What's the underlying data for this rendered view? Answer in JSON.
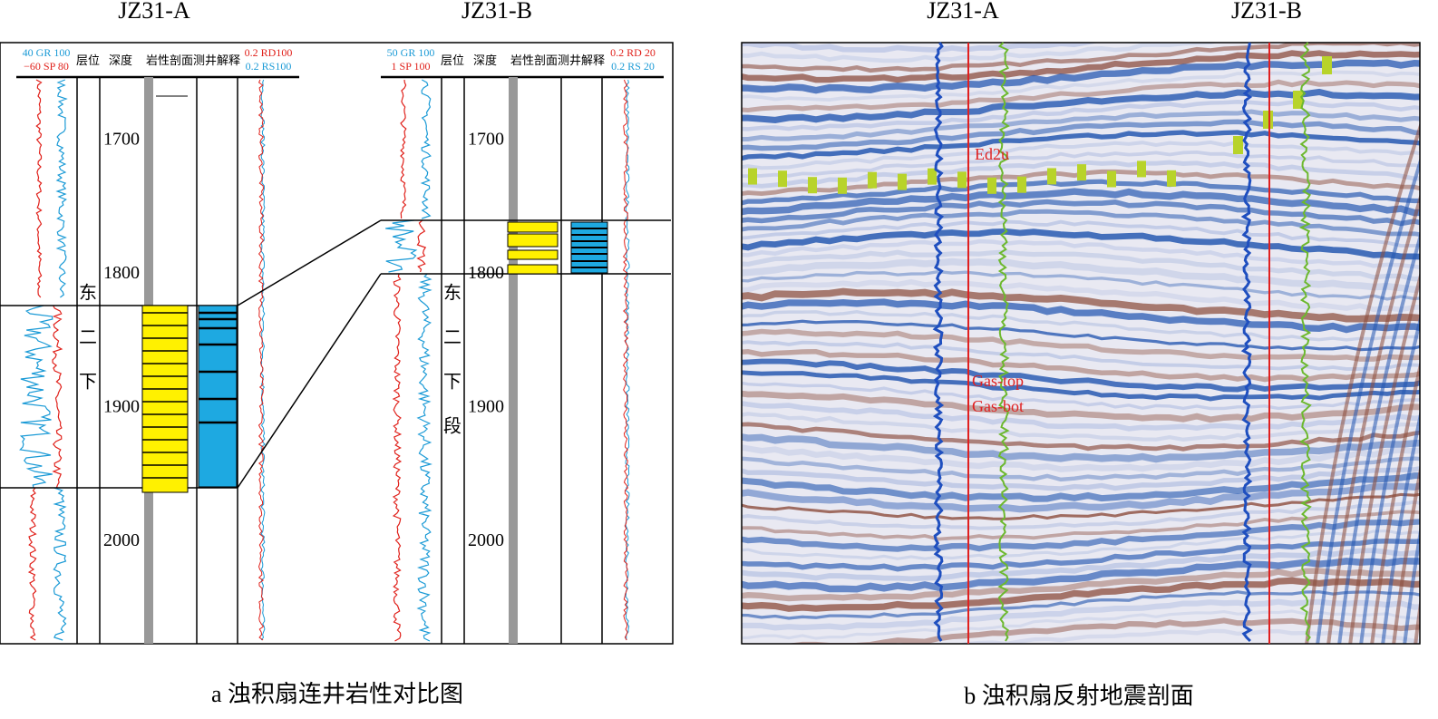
{
  "panel_a": {
    "wells": [
      {
        "name": "JZ31-A",
        "gr": "40 GR 100",
        "sp": "−60 SP 80",
        "columns": [
          "层位",
          "深度",
          "岩性剖面",
          "测井解释"
        ],
        "rd": "0.2 RD100",
        "rs": "0.2 RS100",
        "depths": [
          1700,
          1800,
          1900,
          2000
        ],
        "formation": [
          "东",
          "二",
          "下"
        ]
      },
      {
        "name": "JZ31-B",
        "gr": "50 GR 100",
        "sp": "1 SP 100",
        "columns": [
          "层位",
          "深度",
          "岩性剖面",
          "测井解释"
        ],
        "rd": "0.2 RD 20",
        "rs": "0.2 RS 20",
        "depths": [
          1700,
          1800,
          1900,
          2000
        ],
        "formation": [
          "东",
          "二",
          "下",
          "段"
        ]
      }
    ],
    "caption": "a 浊积扇连井岩性对比图"
  },
  "panel_b": {
    "wells": [
      "JZ31-A",
      "JZ31-B"
    ],
    "labels": [
      "Ed2u",
      "Gas-top",
      "Gas-bot"
    ],
    "caption": "b 浊积扇反射地震剖面"
  }
}
